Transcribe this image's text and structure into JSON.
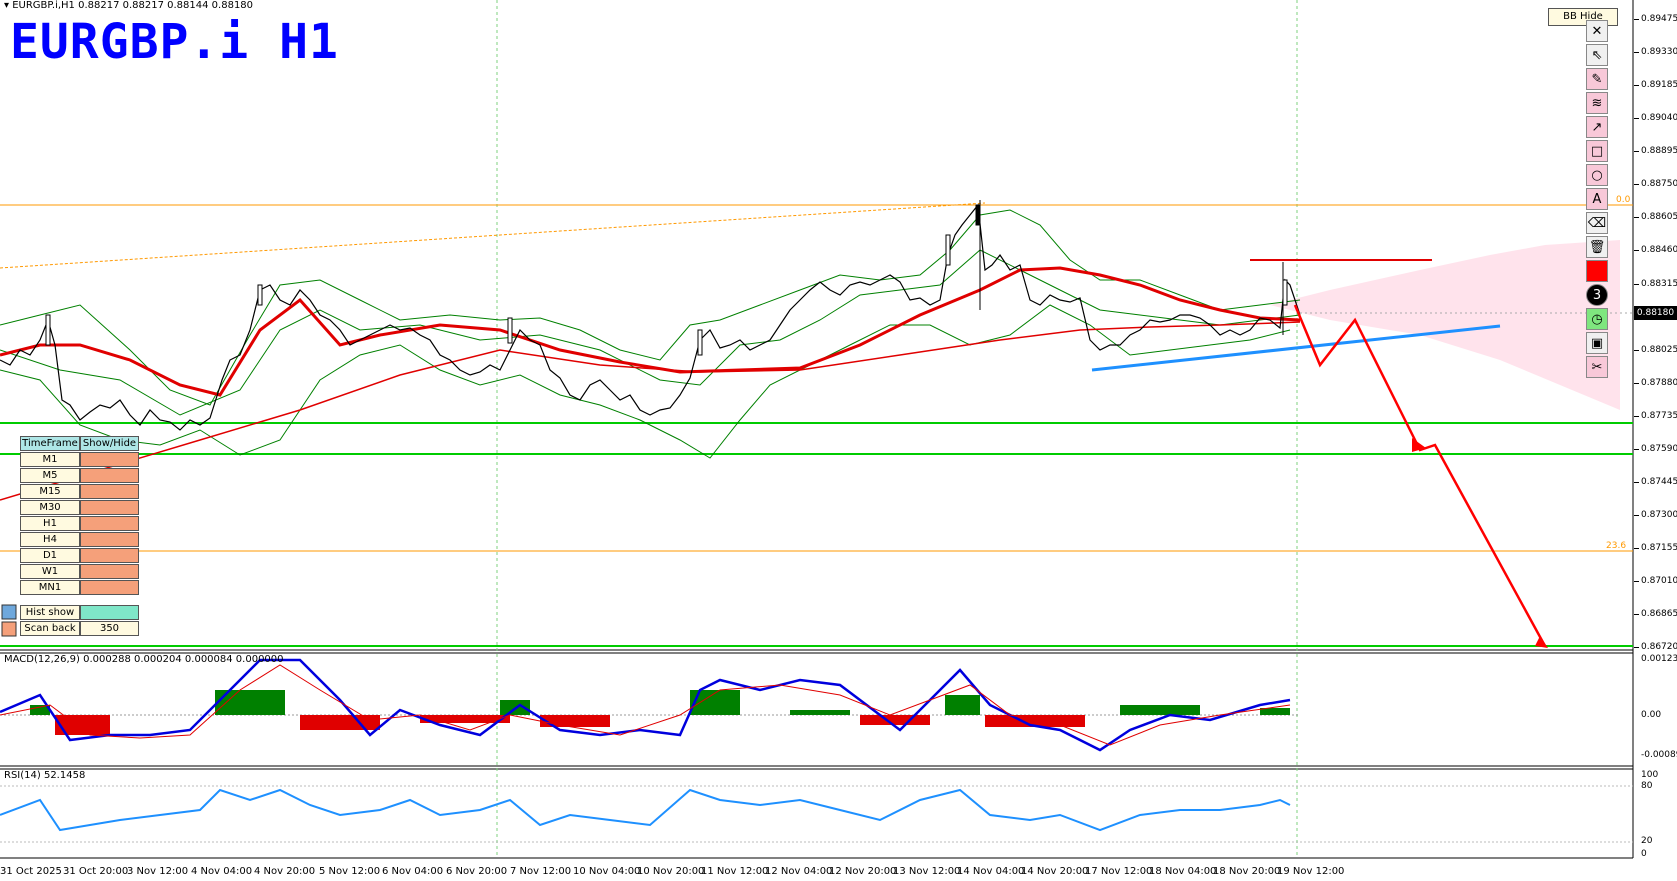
{
  "header": {
    "symbol_line": "EURGBP.i,H1  0.88217 0.88217 0.88144 0.88180",
    "big_title": "EURGBP.i H1"
  },
  "bb_hide_label": "BB Hide",
  "current_price": "0.88180",
  "price_axis": [
    "0.89475",
    "0.89330",
    "0.89185",
    "0.89040",
    "0.88895",
    "0.88750",
    "0.88605",
    "0.88460",
    "0.88315",
    "0.88025",
    "0.87880",
    "0.87735",
    "0.87590",
    "0.87445",
    "0.87300",
    "0.87155",
    "0.87010",
    "0.86865",
    "0.86720"
  ],
  "fib_labels": {
    "top": "0.0",
    "bottom": "23.6"
  },
  "time_axis": [
    "31 Oct 2025",
    "31 Oct 20:00",
    "3 Nov 12:00",
    "4 Nov 04:00",
    "4 Nov 20:00",
    "5 Nov 12:00",
    "6 Nov 04:00",
    "6 Nov 20:00",
    "7 Nov 12:00",
    "10 Nov 04:00",
    "10 Nov 20:00",
    "11 Nov 12:00",
    "12 Nov 04:00",
    "12 Nov 20:00",
    "13 Nov 12:00",
    "14 Nov 04:00",
    "14 Nov 20:00",
    "17 Nov 12:00",
    "18 Nov 04:00",
    "18 Nov 20:00",
    "19 Nov 12:00"
  ],
  "timeframe_panel": {
    "header_tf": "TimeFrame",
    "header_show": "Show/Hide",
    "rows": [
      "M1",
      "M5",
      "M15",
      "M30",
      "H1",
      "H4",
      "D1",
      "W1",
      "MN1"
    ],
    "hist_show": "Hist show",
    "scan_back": "Scan back",
    "scan_back_value": "350"
  },
  "macd": {
    "label": "MACD(12,26,9) 0.000288 0.000204 0.000084 0.000000",
    "axis": [
      "0.00123",
      "0.00",
      "-0.000898"
    ]
  },
  "rsi": {
    "label": "RSI(14) 52.1458",
    "axis": [
      "100",
      "80",
      "20",
      "0"
    ]
  },
  "toolbar_icons": [
    "close-icon",
    "cursor-icon",
    "pencil-icon",
    "fibonacci-icon",
    "arrow-icon",
    "rectangle-icon",
    "ellipse-icon",
    "text-icon",
    "eraser-icon",
    "trash-icon",
    "color-swatch-icon",
    "width-icon",
    "clock-icon",
    "save-icon",
    "scissors-icon"
  ],
  "colors": {
    "title": "#0000ff",
    "ma": "#e00000",
    "bb": "#008000",
    "trend": "#1e90ff",
    "support": "#00cc00",
    "fib": "#ff9900",
    "projection": "#ff0000"
  }
}
